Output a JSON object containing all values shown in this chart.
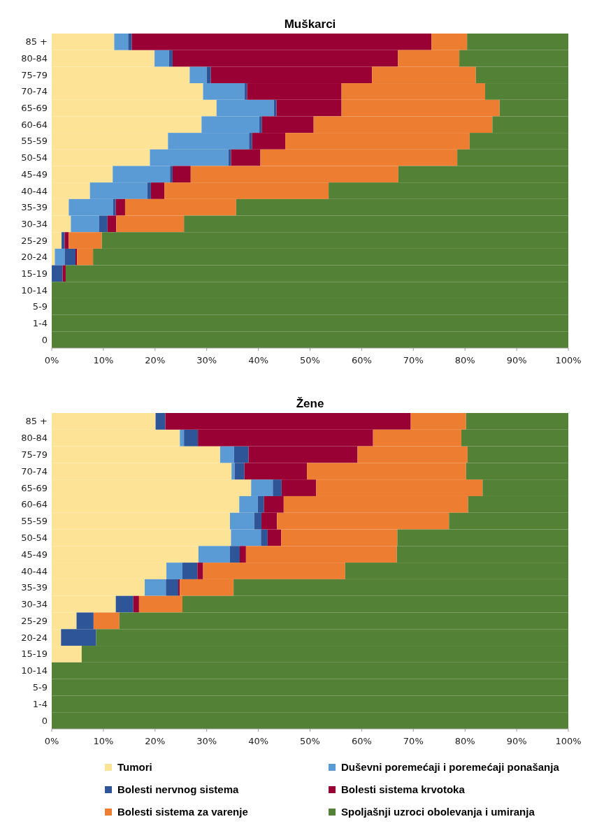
{
  "chart_data": [
    {
      "type": "bar",
      "orientation": "horizontal",
      "stacked": true,
      "title": "Muškarci",
      "categories": [
        "85 +",
        "80-84",
        "75-79",
        "70-74",
        "65-69",
        "60-64",
        "55-59",
        "50-54",
        "45-49",
        "40-44",
        "35-39",
        "30-34",
        "25-29",
        "20-24",
        "15-19",
        "10-14",
        "5-9",
        "1-4",
        "0"
      ],
      "xlim": [
        0,
        100
      ],
      "xticks": [
        {
          "value": 0,
          "label": "0%"
        },
        {
          "value": 10,
          "label": "10%"
        },
        {
          "value": 20,
          "label": "20%"
        },
        {
          "value": 30,
          "label": "30%"
        },
        {
          "value": 40,
          "label": "40%"
        },
        {
          "value": 50,
          "label": "50%"
        },
        {
          "value": 60,
          "label": "60%"
        },
        {
          "value": 70,
          "label": "70%"
        },
        {
          "value": 80,
          "label": "80%"
        },
        {
          "value": 90,
          "label": "90%"
        },
        {
          "value": 100,
          "label": "100%"
        }
      ],
      "legend": false,
      "series": [
        {
          "color": "#fde396",
          "values": [
            12.1,
            19.9,
            26.7,
            29.3,
            31.9,
            29.0,
            22.5,
            19.0,
            11.8,
            7.4,
            3.3,
            3.7,
            1.9,
            0.6,
            0,
            0,
            0,
            0,
            0
          ]
        },
        {
          "color": "#5b9bd5",
          "values": [
            2.7,
            2.8,
            3.3,
            8.0,
            11.1,
            11.2,
            15.7,
            15.2,
            11.1,
            11.1,
            8.6,
            5.5,
            0,
            1.9,
            0,
            0,
            0,
            0,
            0
          ]
        },
        {
          "color": "#2e5597",
          "values": [
            0.7,
            0.7,
            0.8,
            0.5,
            0.5,
            0.5,
            0.6,
            0.5,
            0.5,
            0.7,
            0.5,
            1.6,
            0.6,
            2.1,
            2.1,
            0,
            0,
            0,
            0
          ]
        },
        {
          "color": "#990033",
          "values": [
            58.0,
            43.6,
            31.2,
            18.3,
            12.6,
            10.0,
            6.4,
            5.7,
            3.5,
            2.6,
            1.8,
            1.7,
            0.8,
            0.3,
            0.6,
            0,
            0,
            0,
            0
          ]
        },
        {
          "color": "#ed7d31",
          "values": [
            6.9,
            11.9,
            20.1,
            27.8,
            30.6,
            34.6,
            35.7,
            38.1,
            40.2,
            31.8,
            21.5,
            13.1,
            6.4,
            3.1,
            0,
            0,
            0,
            0,
            0
          ]
        },
        {
          "color": "#538135",
          "values": [
            19.6,
            21.1,
            17.9,
            16.1,
            13.3,
            14.7,
            19.1,
            21.5,
            32.9,
            46.4,
            64.3,
            74.4,
            90.3,
            92.0,
            97.3,
            100,
            100,
            100,
            100
          ]
        }
      ]
    },
    {
      "type": "bar",
      "orientation": "horizontal",
      "stacked": true,
      "title": "Žene",
      "categories": [
        "85 +",
        "80-84",
        "75-79",
        "70-74",
        "65-69",
        "60-64",
        "55-59",
        "50-54",
        "45-49",
        "40-44",
        "35-39",
        "30-34",
        "25-29",
        "20-24",
        "15-19",
        "10-14",
        "5-9",
        "1-4",
        "0"
      ],
      "xlim": [
        0,
        100
      ],
      "xticks": [
        {
          "value": 0,
          "label": "0%"
        },
        {
          "value": 10,
          "label": "10%"
        },
        {
          "value": 20,
          "label": "20%"
        },
        {
          "value": 30,
          "label": "30%"
        },
        {
          "value": 40,
          "label": "40%"
        },
        {
          "value": 50,
          "label": "50%"
        },
        {
          "value": 60,
          "label": "60%"
        },
        {
          "value": 70,
          "label": "70%"
        },
        {
          "value": 80,
          "label": "80%"
        },
        {
          "value": 90,
          "label": "90%"
        },
        {
          "value": 100,
          "label": "100%"
        }
      ],
      "legend": "bottom",
      "series": [
        {
          "name": "Tumori",
          "color": "#fde396",
          "values": [
            20.1,
            24.8,
            32.6,
            34.8,
            38.6,
            36.3,
            34.5,
            34.7,
            28.4,
            22.2,
            18.0,
            12.4,
            4.8,
            1.8,
            5.8,
            0,
            0,
            0,
            0
          ]
        },
        {
          "name": "Duševni poremećaji i poremećaji ponašanja",
          "color": "#5b9bd5",
          "values": [
            0,
            0.8,
            2.7,
            0.6,
            4.2,
            3.6,
            4.7,
            5.8,
            6.1,
            3.1,
            4.1,
            0,
            0,
            0,
            0,
            0,
            0,
            0,
            0
          ]
        },
        {
          "name": "Bolesti nervnog sistema",
          "color": "#2e5597",
          "values": [
            1.9,
            2.7,
            2.8,
            1.9,
            1.7,
            1.2,
            1.4,
            1.3,
            1.9,
            2.9,
            2.4,
            3.4,
            3.3,
            6.8,
            0,
            0,
            0,
            0,
            0
          ]
        },
        {
          "name": "Bolesti sistema krvotoka",
          "color": "#990033",
          "values": [
            47.5,
            33.9,
            21.1,
            12.1,
            6.7,
            3.8,
            3.0,
            2.6,
            1.2,
            1.1,
            0.3,
            1.1,
            0,
            0,
            0,
            0,
            0,
            0,
            0
          ]
        },
        {
          "name": "Bolesti sistema za varenje",
          "color": "#ed7d31",
          "values": [
            10.7,
            17.1,
            21.3,
            30.8,
            32.2,
            35.7,
            33.3,
            22.5,
            29.2,
            27.5,
            10.4,
            8.4,
            5.0,
            0,
            0,
            0,
            0,
            0,
            0
          ]
        },
        {
          "name": "Spoljašnji uzroci obolevanja i umiranja",
          "color": "#538135",
          "values": [
            19.8,
            20.7,
            19.5,
            19.8,
            16.6,
            19.4,
            23.1,
            33.1,
            33.2,
            43.2,
            64.8,
            74.7,
            86.9,
            91.4,
            94.2,
            100,
            100,
            100,
            100
          ]
        }
      ]
    }
  ]
}
